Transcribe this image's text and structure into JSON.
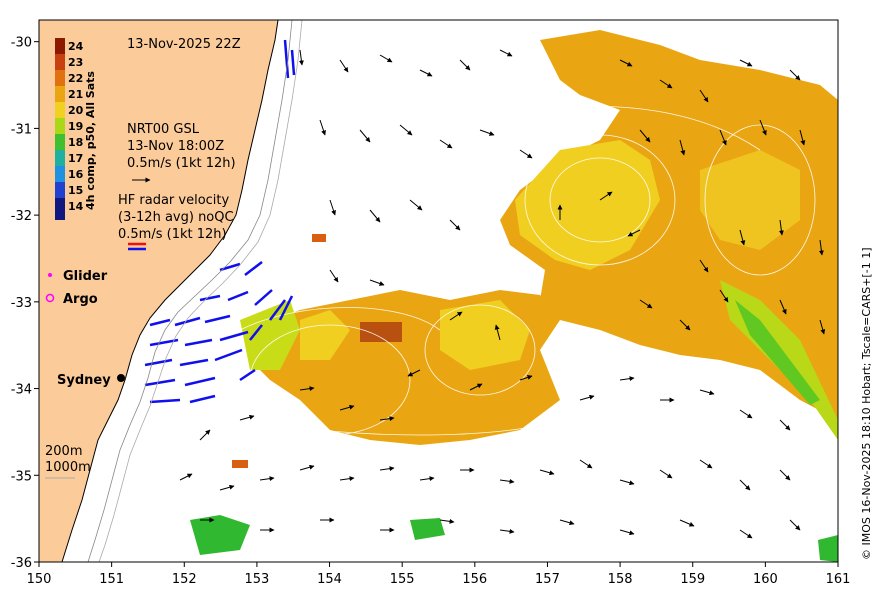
{
  "map": {
    "lon_range": [
      150,
      161
    ],
    "lat_range": [
      -36,
      -29.75
    ],
    "x_ticks": [
      "150",
      "151",
      "152",
      "153",
      "154",
      "155",
      "156",
      "157",
      "158",
      "159",
      "160",
      "161"
    ],
    "y_ticks": [
      "-30",
      "-31",
      "-32",
      "-33",
      "-34",
      "-35",
      "-36"
    ]
  },
  "title": "13-Nov-2025 22Z",
  "colorbar": {
    "label": "4h comp, p50, All Sats",
    "ticks": [
      "24",
      "23",
      "22",
      "21",
      "20",
      "19",
      "18",
      "17",
      "16",
      "15",
      "14"
    ]
  },
  "legend": {
    "gsl_line1": "NRT00 GSL",
    "gsl_line2": "13-Nov 18:00Z",
    "gsl_line3": "0.5m/s (1kt 12h)",
    "hf_line1": "HF radar velocity",
    "hf_line2": "(3-12h avg) noQC",
    "hf_line3": "0.5m/s (1kt 12h)",
    "glider": "Glider",
    "argo": "Argo",
    "city": "Sydney",
    "depth1": "200m",
    "depth2": "1000m"
  },
  "credit": "© IMOS 16-Nov-2025 18:10 Hobart; Tscale=CARS+[-1 1]",
  "colors": {
    "land": "#fccb9a",
    "sst_warm": "#e8a010",
    "sst_mid": "#f0c820",
    "sst_cool": "#c8dc18",
    "hf_radar": "#1010ee",
    "glider": "#ff00ff",
    "argo": "#ff00ff"
  }
}
